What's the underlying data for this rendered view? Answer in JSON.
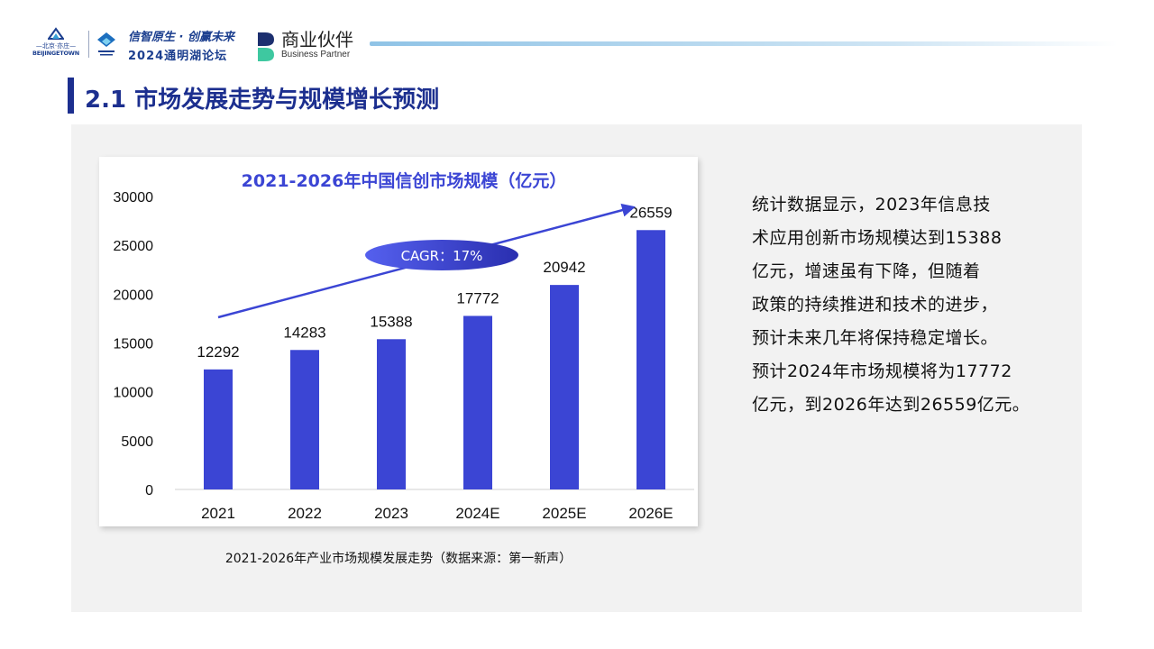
{
  "header": {
    "bj_logo_cn": "—北京·亦庄—",
    "bj_logo_en": "BEIJINGETOWN",
    "forum_slogan": "信智原生 · 创赢未来",
    "forum_name": "2024通明湖论坛",
    "partner_cn": "商业伙伴",
    "partner_en": "Business Partner"
  },
  "section": {
    "title": "2.1  市场发展走势与规模增长预测"
  },
  "chart_data": {
    "type": "bar",
    "title": "2021-2026年中国信创市场规模（亿元）",
    "categories": [
      "2021",
      "2022",
      "2023",
      "2024E",
      "2025E",
      "2026E"
    ],
    "values": [
      12292,
      14283,
      15388,
      17772,
      20942,
      26559
    ],
    "ylim": [
      0,
      30000
    ],
    "yticks": [
      0,
      5000,
      10000,
      15000,
      20000,
      25000,
      30000
    ],
    "xlabel": "",
    "ylabel": "",
    "grid": false,
    "annotation": "CAGR：17%",
    "colors": {
      "bar": "#3b45d4",
      "arrow": "#3b45d4",
      "badge_from": "#5560ee",
      "badge_to": "#2a2fb0",
      "title": "#3b45d4"
    }
  },
  "caption": "2021-2026年产业市场规模发展走势（数据来源：第一新声）",
  "description_lines": [
    "统计数据显示，2023年信息技",
    "术应用创新市场规模达到15388",
    "亿元，增速虽有下降，但随着",
    "政策的持续推进和技术的进步，",
    "预计未来几年将保持稳定增长。",
    "预计2024年市场规模将为17772",
    "亿元，到2026年达到26559亿元。"
  ]
}
